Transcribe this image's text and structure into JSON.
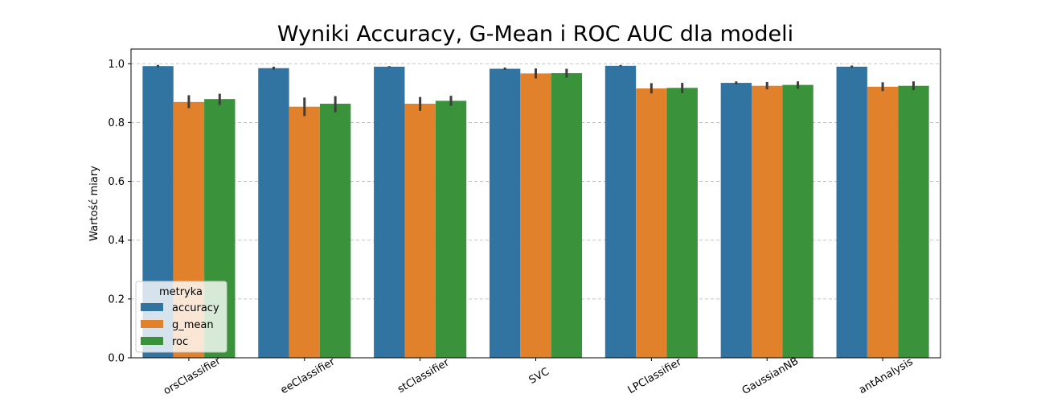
{
  "chart_data": {
    "type": "bar",
    "title": "Wyniki Accuracy, G-Mean i ROC AUC dla modeli",
    "xlabel": "",
    "ylabel": "Wartość miary",
    "ylim": [
      0,
      1.05
    ],
    "yticks": [
      "0.0",
      "0.2",
      "0.4",
      "0.6",
      "0.8",
      "1.0"
    ],
    "grid": "horizontal dashed",
    "legend_position": "lower-left",
    "legend_title": "metryka",
    "categories": [
      "orsClassifier",
      "eeClassifier",
      "stClassifier",
      "SVC",
      "LPClassifier",
      "GaussianNB",
      "antAnalysis"
    ],
    "series": [
      {
        "name": "accuracy",
        "color": "#3274a1",
        "values": [
          0.992,
          0.985,
          0.99,
          0.983,
          0.993,
          0.935,
          0.99
        ],
        "err_low": [
          0.988,
          0.98,
          0.988,
          0.979,
          0.99,
          0.93,
          0.986
        ],
        "err_high": [
          0.996,
          0.99,
          0.992,
          0.987,
          0.996,
          0.94,
          0.994
        ]
      },
      {
        "name": "g_mean",
        "color": "#e1812c",
        "values": [
          0.87,
          0.854,
          0.864,
          0.967,
          0.916,
          0.925,
          0.922
        ],
        "err_low": [
          0.849,
          0.822,
          0.84,
          0.95,
          0.899,
          0.913,
          0.907
        ],
        "err_high": [
          0.893,
          0.885,
          0.887,
          0.984,
          0.934,
          0.938,
          0.937
        ]
      },
      {
        "name": "roc",
        "color": "#3a923a",
        "values": [
          0.88,
          0.864,
          0.874,
          0.968,
          0.918,
          0.928,
          0.925
        ],
        "err_low": [
          0.86,
          0.835,
          0.857,
          0.953,
          0.9,
          0.915,
          0.91
        ],
        "err_high": [
          0.898,
          0.89,
          0.891,
          0.983,
          0.935,
          0.94,
          0.94
        ]
      }
    ]
  }
}
